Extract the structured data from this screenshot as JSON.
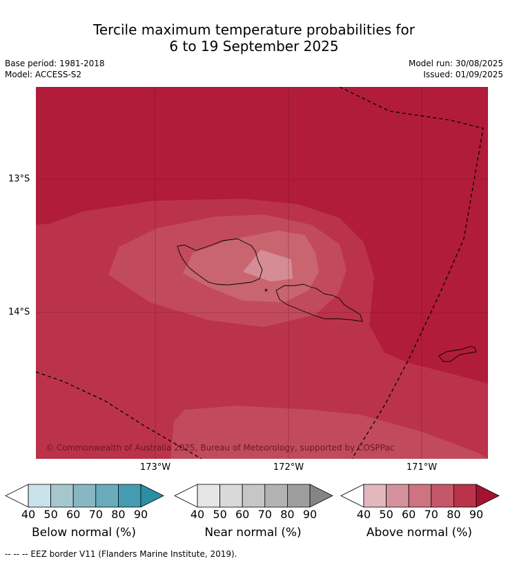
{
  "title_line1": "Tercile maximum temperature probabilities for",
  "title_line2": "6 to 19 September 2025",
  "base_period": "Base period: 1981-2018",
  "model": "Model: ACCESS-S2",
  "model_run": "Model run: 30/08/2025",
  "issued": "Issued: 01/09/2025",
  "lat_labels": [
    "13°S",
    "14°S"
  ],
  "lon_labels": [
    "173°W",
    "172°W",
    "171°W"
  ],
  "copyright": "© Commonwealth of Australia 2025, Bureau of Meteorology, supported by COSPPac",
  "colorbars": [
    {
      "title": "Below normal (%)",
      "ticks": [
        "40",
        "50",
        "60",
        "70",
        "80",
        "90"
      ],
      "colors": [
        "#ffffff",
        "#c9e1e8",
        "#a6c6cd",
        "#88b7c3",
        "#6aabbc",
        "#459cb0",
        "#2a8fa5"
      ]
    },
    {
      "title": "Near normal (%)",
      "ticks": [
        "40",
        "50",
        "60",
        "70",
        "80",
        "90"
      ],
      "colors": [
        "#ffffff",
        "#e6e6e6",
        "#d9d9d9",
        "#c6c6c6",
        "#b3b3b3",
        "#9e9e9e",
        "#858585"
      ]
    },
    {
      "title": "Above normal (%)",
      "ticks": [
        "40",
        "50",
        "60",
        "70",
        "80",
        "90"
      ],
      "colors": [
        "#ffffff",
        "#e2b7be",
        "#d5929d",
        "#cd7480",
        "#c45868",
        "#b93349",
        "#a3132f"
      ]
    }
  ],
  "footnote": "--  --  -- EEZ border V11 (Flanders Marine Institute, 2019).",
  "map_colors": {
    "p90": "#b01c3a",
    "p80": "#bb334a",
    "p70": "#c14b5d",
    "p60": "#c8656f",
    "p50": "#d58c95"
  }
}
